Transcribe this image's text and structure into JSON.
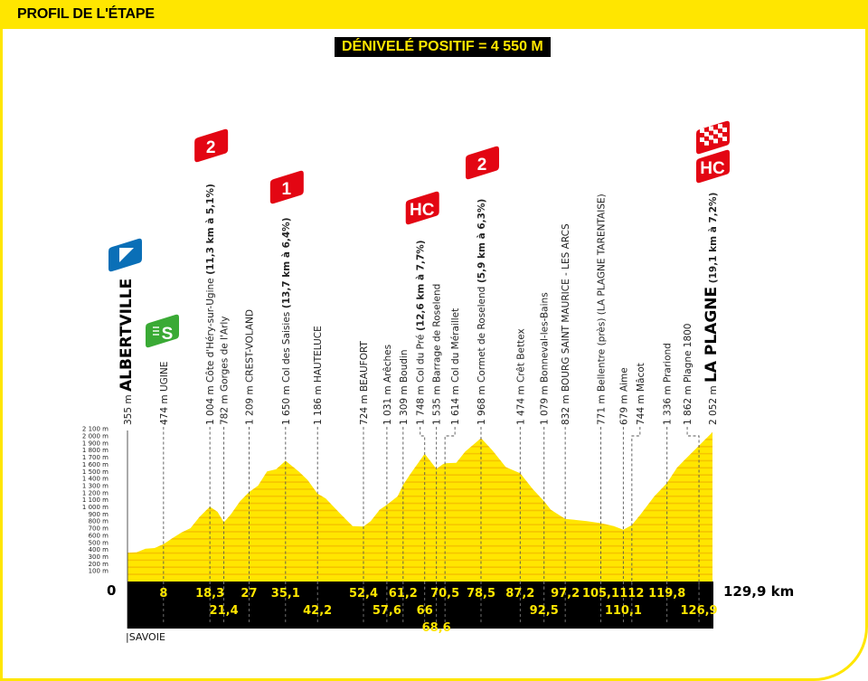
{
  "header": {
    "title": "PROFIL DE L'ÉTAPE"
  },
  "elevation_gain": "DÉNIVELÉ POSITIF = 4 550 M",
  "region": "|SAVOIE",
  "colors": {
    "brand_yellow": "#ffe600",
    "stripe": "#f2b600",
    "climb_red": "#e30613",
    "start_blue": "#0a6fb7",
    "sprint_green": "#3aaa35"
  },
  "chart_data": {
    "type": "area",
    "title": "",
    "xlabel": "",
    "ylabel": "",
    "xlim": [
      0,
      129.9
    ],
    "ylim": [
      0,
      2100
    ],
    "grid": false,
    "x_start_label": "0",
    "x_end_label": "129,9 km",
    "y_ticks": [
      "100 m",
      "200 m",
      "300 m",
      "400 m",
      "500 m",
      "600 m",
      "700 m",
      "800 m",
      "900 m",
      "1 000 m",
      "1 100 m",
      "1 200 m",
      "1 300 m",
      "1 400 m",
      "1 500 m",
      "1 600 m",
      "1 700 m",
      "1 800 m",
      "1 900 m",
      "2 000 m",
      "2 100 m"
    ],
    "profile": [
      [
        0,
        355
      ],
      [
        2,
        360
      ],
      [
        4,
        410
      ],
      [
        6,
        420
      ],
      [
        8,
        474
      ],
      [
        10,
        560
      ],
      [
        12,
        640
      ],
      [
        14,
        700
      ],
      [
        16,
        860
      ],
      [
        18.3,
        1004
      ],
      [
        20,
        930
      ],
      [
        21.4,
        782
      ],
      [
        23,
        900
      ],
      [
        25,
        1080
      ],
      [
        27,
        1209
      ],
      [
        29,
        1300
      ],
      [
        31,
        1500
      ],
      [
        33,
        1530
      ],
      [
        35.1,
        1650
      ],
      [
        38,
        1500
      ],
      [
        40,
        1380
      ],
      [
        42.2,
        1186
      ],
      [
        44,
        1120
      ],
      [
        47,
        920
      ],
      [
        50,
        730
      ],
      [
        52.4,
        724
      ],
      [
        54,
        800
      ],
      [
        56,
        960
      ],
      [
        57.6,
        1031
      ],
      [
        60,
        1150
      ],
      [
        61.2,
        1309
      ],
      [
        63,
        1480
      ],
      [
        66,
        1748
      ],
      [
        68.6,
        1535
      ],
      [
        70,
        1600
      ],
      [
        70.5,
        1614
      ],
      [
        73,
        1620
      ],
      [
        75,
        1780
      ],
      [
        78.5,
        1968
      ],
      [
        81,
        1800
      ],
      [
        84,
        1560
      ],
      [
        87.2,
        1474
      ],
      [
        90,
        1250
      ],
      [
        92.5,
        1079
      ],
      [
        94,
        960
      ],
      [
        97.2,
        832
      ],
      [
        99,
        820
      ],
      [
        102,
        800
      ],
      [
        105.1,
        771
      ],
      [
        108,
        730
      ],
      [
        110.1,
        679
      ],
      [
        112,
        744
      ],
      [
        114,
        900
      ],
      [
        117,
        1150
      ],
      [
        119.8,
        1336
      ],
      [
        122,
        1550
      ],
      [
        124,
        1680
      ],
      [
        126.9,
        1862
      ],
      [
        129.9,
        2052
      ]
    ],
    "waypoints": [
      {
        "km": 0,
        "km_label": "",
        "alt": "355 m",
        "name": "ALBERTVILLE",
        "type": "start",
        "badge": "start-flag"
      },
      {
        "km": 8,
        "km_label": "8",
        "alt": "474 m",
        "name": "UGINE",
        "badge": "sprint",
        "badge_text": "S"
      },
      {
        "km": 18.3,
        "km_label": "18,3",
        "alt": "1 004 m",
        "name": "Côte d'Héry-sur-Ugine",
        "climb": "(11,3 km à 5,1%)",
        "badge": "cat",
        "badge_text": "2"
      },
      {
        "km": 21.4,
        "km_label": "21,4",
        "alt": "782 m",
        "name": "Gorges de l'Arly"
      },
      {
        "km": 27,
        "km_label": "27",
        "alt": "1 209 m",
        "name": "CREST-VOLAND"
      },
      {
        "km": 35.1,
        "km_label": "35,1",
        "alt": "1 650 m",
        "name": "Col des Saisies",
        "climb": "(13,7 km à 6,4%)",
        "badge": "cat",
        "badge_text": "1"
      },
      {
        "km": 42.2,
        "km_label": "42,2",
        "alt": "1 186 m",
        "name": "HAUTELUCE"
      },
      {
        "km": 52.4,
        "km_label": "52,4",
        "alt": "724 m",
        "name": "BEAUFORT"
      },
      {
        "km": 57.6,
        "km_label": "57,6",
        "alt": "1 031 m",
        "name": "Arêches"
      },
      {
        "km": 61.2,
        "km_label": "61,2",
        "alt": "1 309 m",
        "name": "Boudin"
      },
      {
        "km": 66,
        "km_label": "66",
        "alt": "1 748 m",
        "name": "Col du Pré",
        "climb": "(12,6 km à 7,7%)",
        "badge": "cat",
        "badge_text": "HC"
      },
      {
        "km": 68.6,
        "km_label": "68,6",
        "alt": "1 535 m",
        "name": "Barrage de Roselend"
      },
      {
        "km": 70.5,
        "km_label": "70,5",
        "alt": "1 614 m",
        "name": "Col du Méraillet"
      },
      {
        "km": 78.5,
        "km_label": "78,5",
        "alt": "1 968 m",
        "name": "Cormet de Roselend",
        "climb": "(5,9 km à 6,3%)",
        "badge": "cat",
        "badge_text": "2"
      },
      {
        "km": 87.2,
        "km_label": "87,2",
        "alt": "1 474 m",
        "name": "Crêt Bettex"
      },
      {
        "km": 92.5,
        "km_label": "92,5",
        "alt": "1 079 m",
        "name": "Bonneval-les-Bains"
      },
      {
        "km": 97.2,
        "km_label": "97,2",
        "alt": "832 m",
        "name": "BOURG SAINT MAURICE - LES ARCS"
      },
      {
        "km": 105.1,
        "km_label": "105,1",
        "alt": "771 m",
        "name": "Bellentre (près) (LA PLAGNE TARENTAISE)"
      },
      {
        "km": 110.1,
        "km_label": "110,1",
        "alt": "679 m",
        "name": "Aime"
      },
      {
        "km": 112,
        "km_label": "112",
        "alt": "744 m",
        "name": "Mâcot"
      },
      {
        "km": 119.8,
        "km_label": "119,8",
        "alt": "1 336 m",
        "name": "Prariond"
      },
      {
        "km": 126.9,
        "km_label": "126,9",
        "alt": "1 862 m",
        "name": "Plagne 1800"
      },
      {
        "km": 129.9,
        "km_label": "",
        "alt": "2 052 m",
        "name": "LA PLAGNE",
        "type": "finish",
        "climb": "(19,1 km à 7,2%)",
        "badge": "cat",
        "badge_text": "HC"
      }
    ]
  }
}
